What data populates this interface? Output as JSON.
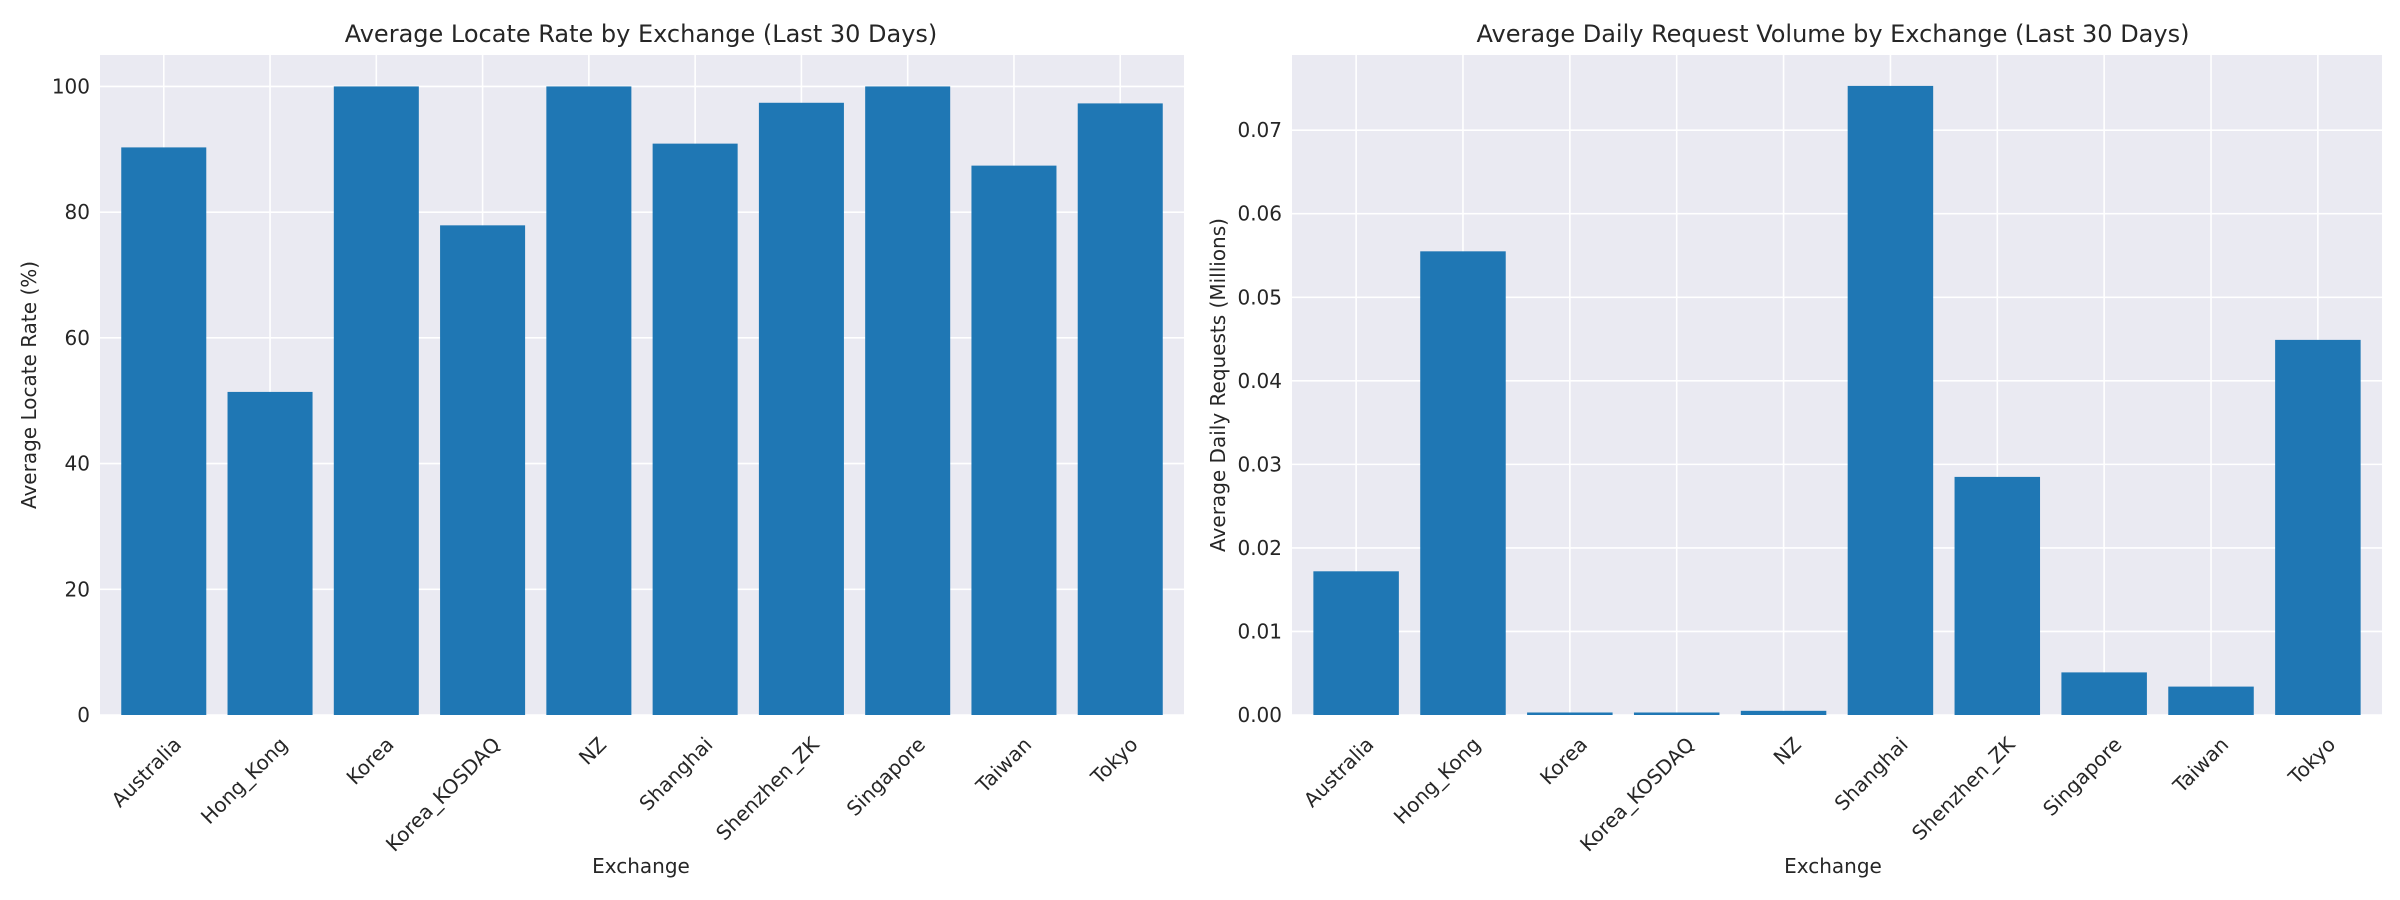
{
  "chart_data": [
    {
      "type": "bar",
      "title": "Average Locate Rate by Exchange (Last 30 Days)",
      "xlabel": "Exchange",
      "ylabel": "Average Locate Rate (%)",
      "categories": [
        "Australia",
        "Hong_Kong",
        "Korea",
        "Korea_KOSDAQ",
        "NZ",
        "Shanghai",
        "Shenzhen_ZK",
        "Singapore",
        "Taiwan",
        "Tokyo"
      ],
      "values": [
        90.3,
        51.4,
        100.0,
        77.9,
        100.0,
        90.9,
        97.4,
        100.0,
        87.4,
        97.3
      ],
      "ylim": [
        0,
        105
      ],
      "yticks": [
        0,
        20,
        40,
        60,
        80,
        100
      ],
      "ytick_labels": [
        "0",
        "20",
        "40",
        "60",
        "80",
        "100"
      ],
      "grid": true,
      "color": "#1f77b4"
    },
    {
      "type": "bar",
      "title": "Average Daily Request Volume by Exchange (Last 30 Days)",
      "xlabel": "Exchange",
      "ylabel": "Average Daily Requests (Millions)",
      "categories": [
        "Australia",
        "Hong_Kong",
        "Korea",
        "Korea_KOSDAQ",
        "NZ",
        "Shanghai",
        "Shenzhen_ZK",
        "Singapore",
        "Taiwan",
        "Tokyo"
      ],
      "values": [
        0.0172,
        0.0555,
        0.0003,
        0.0003,
        0.0005,
        0.0753,
        0.0285,
        0.0051,
        0.0034,
        0.0449
      ],
      "ylim": [
        0,
        0.079
      ],
      "yticks": [
        0,
        0.01,
        0.02,
        0.03,
        0.04,
        0.05,
        0.06,
        0.07
      ],
      "ytick_labels": [
        "0.00",
        "0.01",
        "0.02",
        "0.03",
        "0.04",
        "0.05",
        "0.06",
        "0.07"
      ],
      "grid": true,
      "color": "#1f77b4"
    }
  ]
}
